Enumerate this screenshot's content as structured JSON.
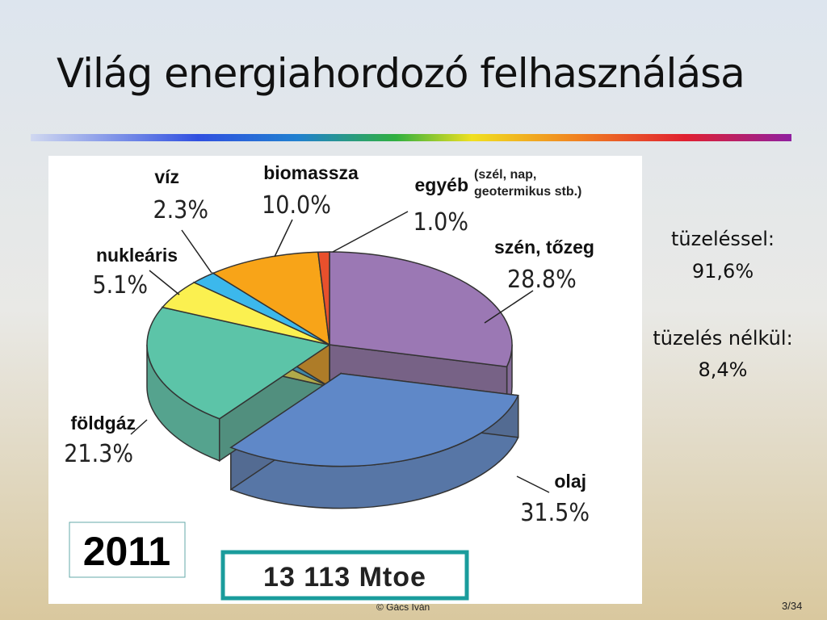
{
  "slide": {
    "title": "Világ energiahordozó felhasználása",
    "side_notes": [
      "tüzeléssel:",
      "91,6%",
      "tüzelés nélkül:",
      "8,4%"
    ],
    "footer": "© Gács Iván",
    "page": "3/34"
  },
  "chart_data": {
    "type": "pie",
    "categories": [
      "szén, tőzeg",
      "olaj",
      "földgáz",
      "nukleáris",
      "víz",
      "biomassza",
      "egyéb"
    ],
    "values": [
      28.8,
      31.5,
      21.3,
      5.1,
      2.3,
      10.0,
      1.0
    ],
    "value_labels": [
      "28.8%",
      "31.5%",
      "21.3%",
      "5.1%",
      "2.3%",
      "10.0%",
      "1.0%"
    ],
    "colors": [
      "#9b78b4",
      "#5f88c8",
      "#5cc4a8",
      "#fbf050",
      "#3cb8ec",
      "#f8a418",
      "#e8502c"
    ],
    "note": [
      "(szél, nap,",
      "geotermikus stb.)"
    ],
    "year": "2011",
    "total": "13 113 Mtoe"
  }
}
